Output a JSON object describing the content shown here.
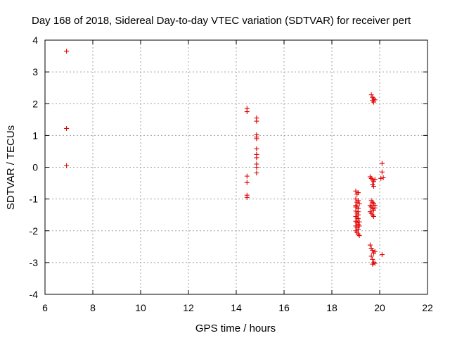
{
  "chart_data": {
    "type": "scatter",
    "title": "Day 168 of 2018, Sidereal Day-to-day VTEC variation (SDTVAR) for receiver pert",
    "xlabel": "GPS time / hours",
    "ylabel": "SDTVAR / TECUs",
    "xlim": [
      6,
      22
    ],
    "ylim": [
      -4,
      4
    ],
    "xticks": [
      "6",
      "8",
      "10",
      "12",
      "14",
      "16",
      "18",
      "20",
      "22"
    ],
    "yticks": [
      "-4",
      "-3",
      "-2",
      "-1",
      "0",
      "1",
      "2",
      "3",
      "4"
    ],
    "grid": true,
    "marker": "plus",
    "color": "#e00000",
    "series": [
      {
        "name": "SDTVAR",
        "points": [
          [
            6.9,
            3.65
          ],
          [
            6.9,
            1.22
          ],
          [
            6.9,
            0.05
          ],
          [
            14.45,
            1.85
          ],
          [
            14.45,
            1.75
          ],
          [
            14.45,
            -0.28
          ],
          [
            14.45,
            -0.48
          ],
          [
            14.45,
            -0.88
          ],
          [
            14.45,
            -0.95
          ],
          [
            14.85,
            1.55
          ],
          [
            14.85,
            1.45
          ],
          [
            14.85,
            1.02
          ],
          [
            14.85,
            0.95
          ],
          [
            14.85,
            0.9
          ],
          [
            14.85,
            0.58
          ],
          [
            14.85,
            0.4
          ],
          [
            14.85,
            0.3
          ],
          [
            14.85,
            0.1
          ],
          [
            14.85,
            0.0
          ],
          [
            14.85,
            -0.18
          ],
          [
            19.0,
            -0.75
          ],
          [
            19.05,
            -0.85
          ],
          [
            19.1,
            -0.8
          ],
          [
            19.0,
            -1.0
          ],
          [
            19.05,
            -1.1
          ],
          [
            19.1,
            -1.05
          ],
          [
            19.15,
            -1.15
          ],
          [
            19.0,
            -1.2
          ],
          [
            19.05,
            -1.25
          ],
          [
            19.1,
            -1.3
          ],
          [
            19.0,
            -1.38
          ],
          [
            19.05,
            -1.45
          ],
          [
            19.1,
            -1.5
          ],
          [
            19.0,
            -1.55
          ],
          [
            19.05,
            -1.6
          ],
          [
            19.1,
            -1.62
          ],
          [
            19.0,
            -1.7
          ],
          [
            19.05,
            -1.75
          ],
          [
            19.1,
            -1.8
          ],
          [
            19.15,
            -1.72
          ],
          [
            19.0,
            -1.85
          ],
          [
            19.05,
            -1.9
          ],
          [
            19.1,
            -1.95
          ],
          [
            19.0,
            -2.0
          ],
          [
            19.05,
            -2.05
          ],
          [
            19.1,
            -2.1
          ],
          [
            19.15,
            -2.15
          ],
          [
            19.0,
            -1.25
          ],
          [
            19.1,
            -1.4
          ],
          [
            19.15,
            -1.85
          ],
          [
            19.65,
            2.28
          ],
          [
            19.7,
            2.2
          ],
          [
            19.75,
            2.15
          ],
          [
            19.7,
            2.1
          ],
          [
            19.75,
            2.05
          ],
          [
            19.8,
            2.12
          ],
          [
            19.6,
            -0.3
          ],
          [
            19.65,
            -0.35
          ],
          [
            19.7,
            -0.4
          ],
          [
            19.75,
            -0.45
          ],
          [
            19.8,
            -0.38
          ],
          [
            19.7,
            -0.55
          ],
          [
            19.75,
            -0.6
          ],
          [
            19.65,
            -1.05
          ],
          [
            19.7,
            -1.1
          ],
          [
            19.75,
            -1.15
          ],
          [
            19.6,
            -1.2
          ],
          [
            19.65,
            -1.25
          ],
          [
            19.7,
            -1.3
          ],
          [
            19.75,
            -1.35
          ],
          [
            19.8,
            -1.28
          ],
          [
            19.6,
            -1.4
          ],
          [
            19.65,
            -1.45
          ],
          [
            19.7,
            -1.5
          ],
          [
            19.75,
            -1.55
          ],
          [
            19.8,
            -1.2
          ],
          [
            19.6,
            -2.45
          ],
          [
            19.65,
            -2.55
          ],
          [
            19.7,
            -2.62
          ],
          [
            19.75,
            -2.7
          ],
          [
            19.8,
            -2.65
          ],
          [
            19.65,
            -2.8
          ],
          [
            19.7,
            -2.9
          ],
          [
            19.75,
            -3.0
          ],
          [
            19.7,
            -3.05
          ],
          [
            19.8,
            -3.02
          ],
          [
            20.1,
            0.12
          ],
          [
            20.1,
            -0.15
          ],
          [
            20.05,
            -0.35
          ],
          [
            20.15,
            -0.33
          ],
          [
            20.1,
            -2.75
          ]
        ]
      }
    ]
  }
}
